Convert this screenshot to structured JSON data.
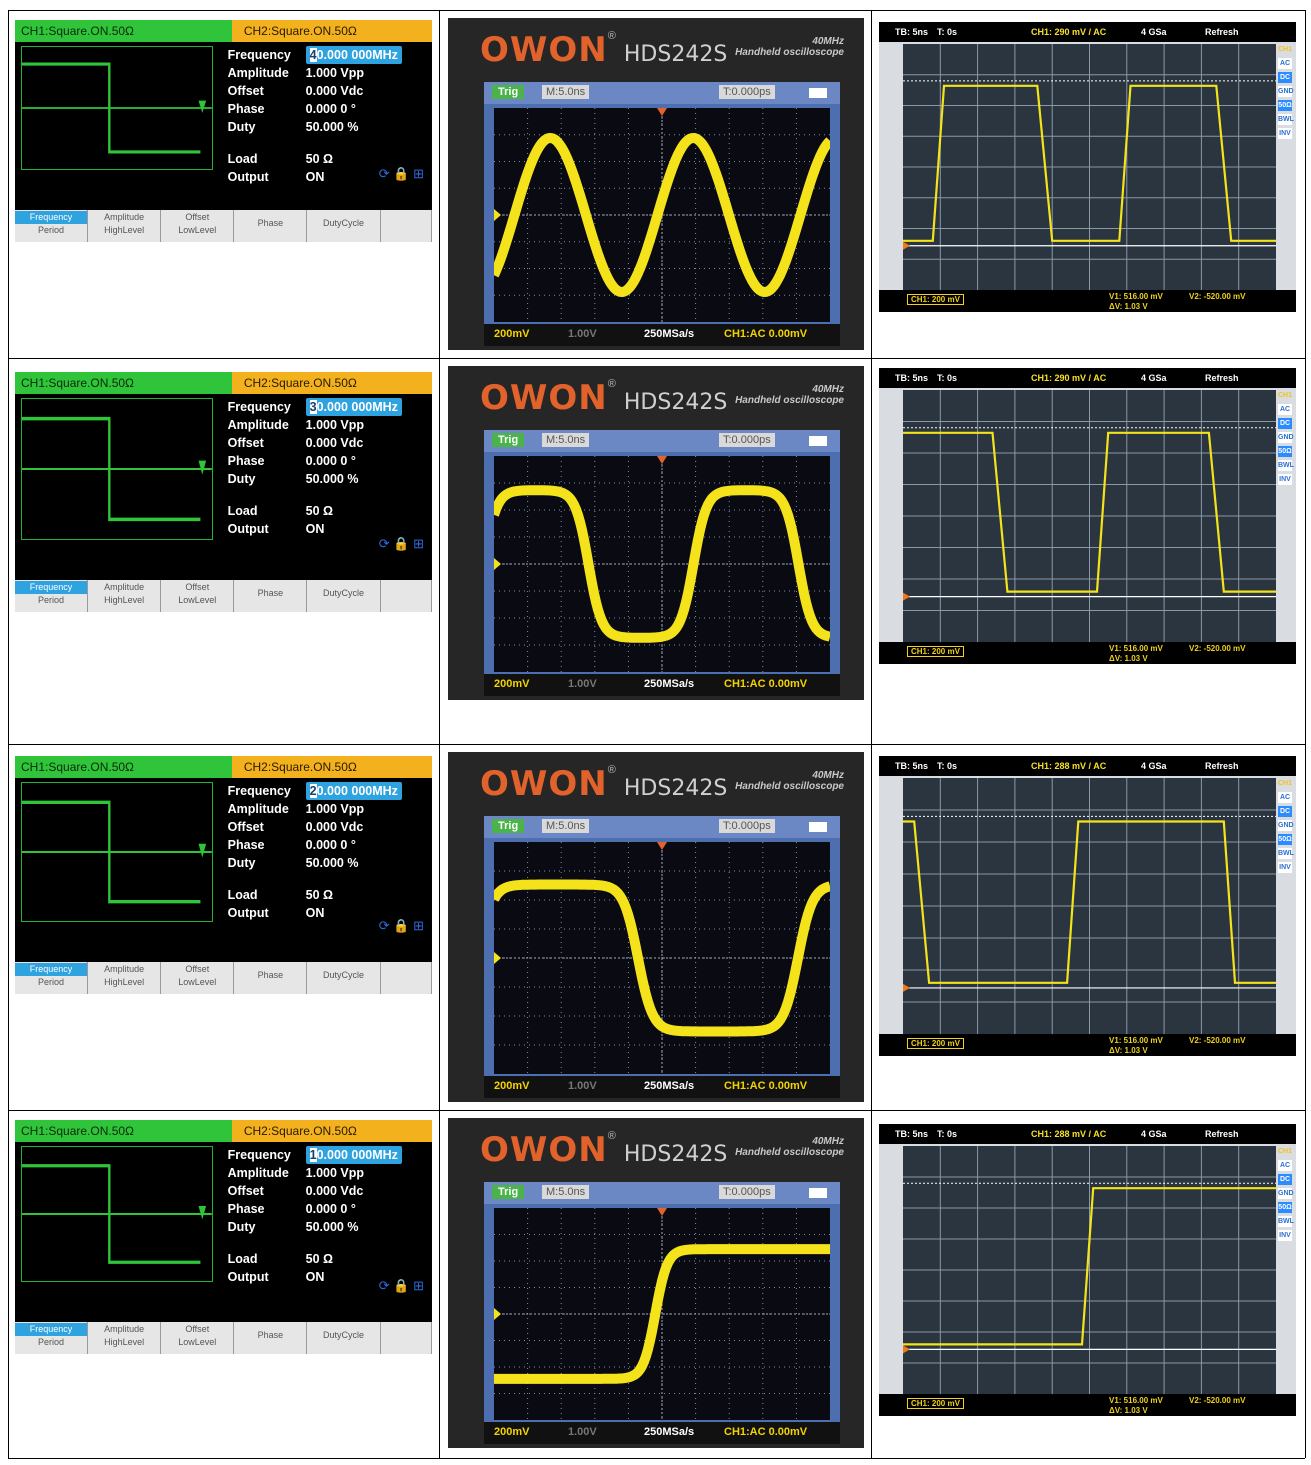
{
  "rows": [
    {
      "generator": {
        "ch1_tab": "CH1:Square.ON.50Ω",
        "ch2_tab": "CH2:Square.ON.50Ω",
        "frequency_cursor": "4",
        "frequency_rest": "0.000 000MHz",
        "amplitude": "1.000 Vpp",
        "offset": "0.000 Vdc",
        "phase": "0.000 0 °",
        "duty": "50.000 %",
        "load": "50 Ω",
        "output": "ON"
      },
      "owon": {
        "bottom_left": "200mV",
        "sample_rate": "250MSa/s",
        "ch1_mode": "CH1:AC  0.00mV",
        "wave": "sine"
      },
      "rigol": {
        "ch1_scale": "CH1: 290 mV / AC",
        "wave": "square40"
      }
    },
    {
      "generator": {
        "ch1_tab": "CH1:Square.ON.50Ω",
        "ch2_tab": "CH2:Square.ON.50Ω",
        "frequency_cursor": "3",
        "frequency_rest": "0.000 000MHz",
        "amplitude": "1.000 Vpp",
        "offset": "0.000 Vdc",
        "phase": "0.000 0 °",
        "duty": "50.000 %",
        "load": "50 Ω",
        "output": "ON"
      },
      "owon": {
        "bottom_left": "200mV",
        "sample_rate": "250MSa/s",
        "ch1_mode": "CH1:AC  0.00mV",
        "wave": "rounded30"
      },
      "rigol": {
        "ch1_scale": "CH1: 290 mV / AC",
        "wave": "square30"
      }
    },
    {
      "generator": {
        "ch1_tab": "CH1:Square.ON.50Ω",
        "ch2_tab": "CH2:Square.ON.50Ω",
        "frequency_cursor": "2",
        "frequency_rest": "0.000 000MHz",
        "amplitude": "1.000 Vpp",
        "offset": "0.000 Vdc",
        "phase": "0.000 0 °",
        "duty": "50.000 %",
        "load": "50 Ω",
        "output": "ON"
      },
      "owon": {
        "bottom_left": "200mV",
        "sample_rate": "250MSa/s",
        "ch1_mode": "CH1:AC  0.00mV",
        "wave": "rounded20"
      },
      "rigol": {
        "ch1_scale": "CH1: 288 mV / AC",
        "wave": "square20"
      }
    },
    {
      "generator": {
        "ch1_tab": "CH1:Square.ON.50Ω",
        "ch2_tab": "CH2:Square.ON.50Ω",
        "frequency_cursor": "1",
        "frequency_rest": "0.000 000MHz",
        "amplitude": "1.000 Vpp",
        "offset": "0.000 Vdc",
        "phase": "0.000 0 °",
        "duty": "50.000 %",
        "load": "50 Ω",
        "output": "ON"
      },
      "owon": {
        "bottom_left": "200mV",
        "sample_rate": "250MSa/s",
        "ch1_mode": "CH1:AC  0.00mV",
        "wave": "step10"
      },
      "rigol": {
        "ch1_scale": "CH1: 288 mV / AC",
        "wave": "step10"
      }
    }
  ],
  "labels": {
    "frequency": "Frequency",
    "amplitude": "Amplitude",
    "offset": "Offset",
    "phase": "Phase",
    "duty": "Duty",
    "load": "Load",
    "output": "Output"
  },
  "softkeys": {
    "frequency": "Frequency",
    "period": "Period",
    "amplitude": "Amplitude",
    "highlevel": "HighLevel",
    "offset": "Offset",
    "lowlevel": "LowLevel",
    "phase": "Phase",
    "dutycycle": "DutyCycle"
  },
  "owon_common": {
    "logo": "OWON",
    "reg": "®",
    "model": "HDS242S",
    "bandwidth": "40MHz",
    "subtitle": "Handheld oscilloscope",
    "trig": "Trig",
    "timebase": "M:5.0ns",
    "trigger_pos": "T:0.000ps",
    "ch2_scale": "1.00V"
  },
  "rigol_common": {
    "tb": "TB: 5ns",
    "t": "T: 0s",
    "rate": "4 GSa",
    "mode": "Refresh",
    "foot_ch1": "CH1: 200 mV",
    "v1": "V1: 516.00 mV",
    "dv": "ΔV: 1.03 V",
    "v2": "V2: -520.00 mV",
    "side_ch": "CH1",
    "side_ac": "AC",
    "side_dc": "DC",
    "side_gnd": "GND",
    "side_50": "50Ω",
    "side_bwl": "BWL",
    "side_inv": "INV"
  },
  "colors": {
    "trace_yellow": "#f4e31a",
    "fg_green": "#2fc43a",
    "fg_orange": "#f2b11d",
    "owon_orange": "#e1622b",
    "highlight_blue": "#2fa2e0"
  }
}
